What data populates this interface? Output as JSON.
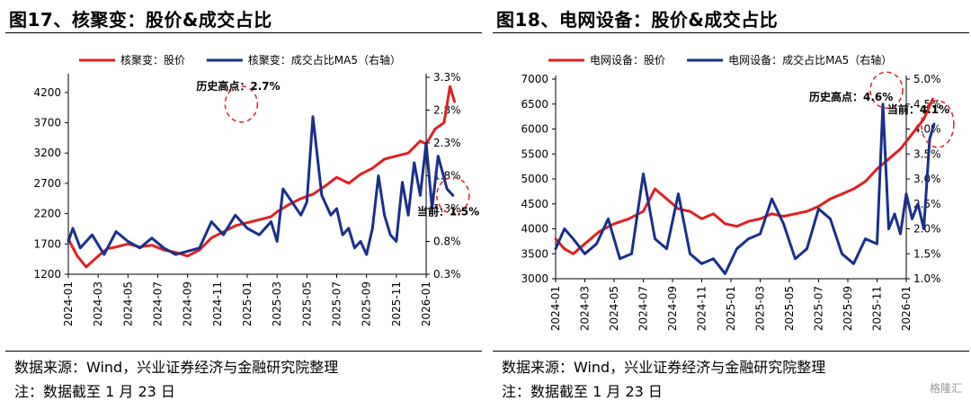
{
  "chart_data": [
    {
      "type": "line",
      "title": "图17、核聚变：股价&成交占比",
      "x_ticks": [
        "2024-01",
        "2024-03",
        "2024-05",
        "2024-07",
        "2024-09",
        "2024-11",
        "2025-01",
        "2025-03",
        "2025-05",
        "2025-07",
        "2025-09",
        "2025-11",
        "2026-01"
      ],
      "y_left": {
        "ticks": [
          "1200",
          "1700",
          "2200",
          "2700",
          "3200",
          "3700",
          "4200"
        ],
        "range": [
          1200,
          4450
        ]
      },
      "y_right": {
        "ticks": [
          "0.3%",
          "0.8%",
          "1.3%",
          "1.8%",
          "2.3%",
          "2.8%",
          "3.3%"
        ],
        "range": [
          0.3,
          3.3
        ]
      },
      "legend_placement": "top",
      "series": [
        {
          "name": "核聚变：股价",
          "axis": "left",
          "color": "#e02020",
          "x": [
            0,
            0.3,
            0.6,
            1,
            1.3,
            1.6,
            2,
            2.4,
            2.8,
            3.2,
            3.6,
            4,
            4.4,
            4.8,
            5.2,
            5.6,
            6,
            6.4,
            6.8,
            7,
            7.4,
            7.8,
            8.2,
            8.6,
            9,
            9.4,
            9.8,
            10.2,
            10.6,
            11,
            11.4,
            11.8,
            12,
            12.3,
            12.6,
            12.8,
            12.95
          ],
          "y": [
            1780,
            1500,
            1320,
            1500,
            1620,
            1650,
            1700,
            1650,
            1680,
            1600,
            1560,
            1500,
            1600,
            1800,
            1900,
            2000,
            2050,
            2100,
            2150,
            2230,
            2350,
            2450,
            2520,
            2650,
            2800,
            2700,
            2850,
            2950,
            3100,
            3150,
            3200,
            3400,
            3350,
            3600,
            3700,
            4300,
            4050
          ]
        },
        {
          "name": "核聚变：成交占比MA5（右轴）",
          "axis": "right",
          "color": "#1a2f8a",
          "x": [
            0,
            0.15,
            0.4,
            0.8,
            1.2,
            1.6,
            2,
            2.4,
            2.8,
            3.2,
            3.6,
            4,
            4.4,
            4.8,
            5.2,
            5.6,
            6,
            6.4,
            6.8,
            7,
            7.2,
            7.5,
            7.8,
            8,
            8.2,
            8.5,
            8.8,
            9,
            9.2,
            9.4,
            9.6,
            9.8,
            10,
            10.2,
            10.4,
            10.6,
            10.8,
            11,
            11.2,
            11.4,
            11.6,
            11.8,
            12,
            12.2,
            12.4,
            12.7,
            12.9
          ],
          "y": [
            0.8,
            1.0,
            0.7,
            0.9,
            0.6,
            0.95,
            0.8,
            0.7,
            0.85,
            0.7,
            0.6,
            0.65,
            0.7,
            1.1,
            0.9,
            1.2,
            1.0,
            0.9,
            1.1,
            0.8,
            1.6,
            1.4,
            1.2,
            1.4,
            2.7,
            1.5,
            1.2,
            1.3,
            0.9,
            1.0,
            0.7,
            0.8,
            0.6,
            1.0,
            1.8,
            1.2,
            0.9,
            0.8,
            1.7,
            1.2,
            2.0,
            1.5,
            2.3,
            1.3,
            2.1,
            1.6,
            1.5
          ]
        }
      ],
      "annotations": [
        {
          "text": "历史高点：2.7%",
          "x": 5.8,
          "y": 2.7,
          "axis": "right"
        },
        {
          "text": "当前：1.5%",
          "x": 12.9,
          "y": 1.5,
          "axis": "right"
        }
      ]
    },
    {
      "type": "line",
      "title": "图18、电网设备：股价&成交占比",
      "x_ticks": [
        "2024-01",
        "2024-03",
        "2024-05",
        "2024-07",
        "2024-09",
        "2024-11",
        "2025-01",
        "2025-03",
        "2025-05",
        "2025-07",
        "2025-09",
        "2025-11",
        "2026-01"
      ],
      "y_left": {
        "ticks": [
          "3000",
          "3500",
          "4000",
          "4500",
          "5000",
          "5500",
          "6000",
          "6500",
          "7000"
        ],
        "range": [
          3000,
          7000
        ]
      },
      "y_right": {
        "ticks": [
          "1.0%",
          "1.5%",
          "2.0%",
          "2.5%",
          "3.0%",
          "3.5%",
          "4.0%",
          "4.5%",
          "5.0%"
        ],
        "range": [
          1.0,
          5.0
        ]
      },
      "legend_placement": "top",
      "series": [
        {
          "name": "电网设备：股价",
          "axis": "left",
          "color": "#e02020",
          "x": [
            0,
            0.3,
            0.6,
            1,
            1.5,
            2,
            2.5,
            3,
            3.4,
            3.8,
            4.2,
            4.6,
            5,
            5.4,
            5.8,
            6.2,
            6.6,
            7,
            7.4,
            7.8,
            8.2,
            8.6,
            9,
            9.4,
            9.8,
            10.2,
            10.6,
            11,
            11.4,
            11.8,
            12.2,
            12.6,
            12.9
          ],
          "y": [
            3800,
            3600,
            3500,
            3700,
            3950,
            4100,
            4200,
            4350,
            4800,
            4600,
            4400,
            4350,
            4200,
            4300,
            4100,
            4050,
            4150,
            4200,
            4300,
            4250,
            4300,
            4350,
            4450,
            4600,
            4700,
            4800,
            4950,
            5200,
            5400,
            5600,
            5900,
            6200,
            6600
          ]
        },
        {
          "name": "电网设备：成交占比MA5（右轴）",
          "axis": "right",
          "color": "#1a2f8a",
          "x": [
            0,
            0.3,
            0.6,
            1,
            1.4,
            1.8,
            2.2,
            2.6,
            3,
            3.4,
            3.8,
            4.2,
            4.6,
            5,
            5.4,
            5.8,
            6.2,
            6.6,
            7,
            7.4,
            7.8,
            8.2,
            8.6,
            9,
            9.4,
            9.8,
            10.2,
            10.6,
            11,
            11.2,
            11.4,
            11.6,
            11.8,
            12,
            12.2,
            12.4,
            12.6,
            12.8,
            12.95
          ],
          "y": [
            1.6,
            2.0,
            1.8,
            1.5,
            1.7,
            2.2,
            1.4,
            1.5,
            3.1,
            1.8,
            1.6,
            2.7,
            1.5,
            1.3,
            1.4,
            1.1,
            1.6,
            1.8,
            1.9,
            2.6,
            2.1,
            1.4,
            1.6,
            2.4,
            2.2,
            1.5,
            1.3,
            1.8,
            1.7,
            4.5,
            2.0,
            2.3,
            1.9,
            2.7,
            2.2,
            2.5,
            2.0,
            3.8,
            4.1
          ]
        }
      ],
      "annotations": [
        {
          "text": "历史高点：4.6%",
          "x": 11.2,
          "y": 4.6,
          "axis": "right"
        },
        {
          "text": "当前：4.1%",
          "x": 12.95,
          "y": 4.1,
          "axis": "right"
        }
      ]
    }
  ],
  "footer": {
    "source": "数据来源：Wind，兴业证券经济与金融研究院整理",
    "note": "注：数据截至 1 月 23 日"
  },
  "watermark": "格隆汇",
  "colors": {
    "price": "#e02020",
    "ratio": "#1a2f8a",
    "axis": "#000000"
  }
}
